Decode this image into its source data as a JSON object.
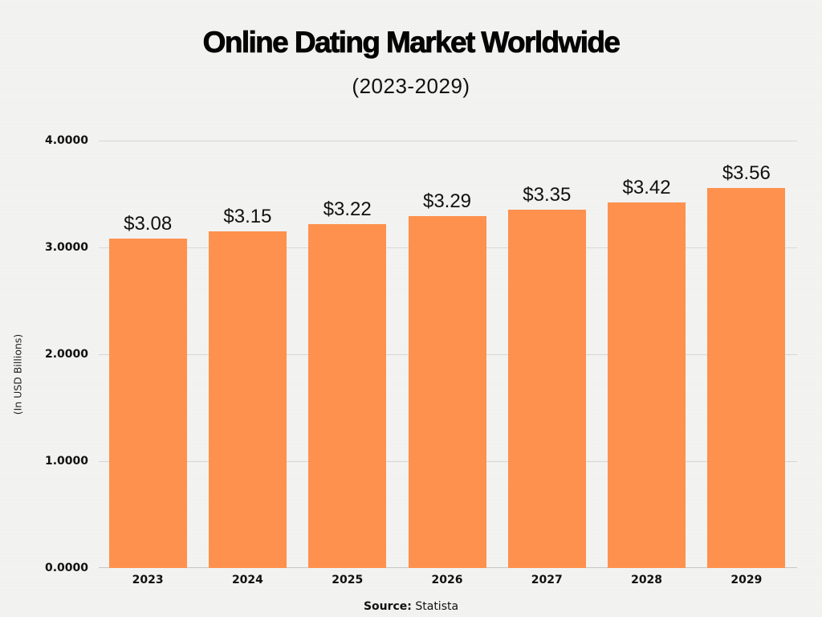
{
  "header": {
    "title": "Online Dating Market Worldwide",
    "subtitle": "(2023-2029)"
  },
  "footer": {
    "source_label": "Source:",
    "source_value": "Statista"
  },
  "colors": {
    "bar": "#fe914d",
    "gridline": "#d6d6d4",
    "background": "#f3f3f2"
  },
  "chart_data": {
    "type": "bar",
    "title": "Online Dating Market Worldwide",
    "subtitle": "(2023-2029)",
    "xlabel": "",
    "ylabel": "(In USD Billions)",
    "categories": [
      "2023",
      "2024",
      "2025",
      "2026",
      "2027",
      "2028",
      "2029"
    ],
    "values": [
      3.08,
      3.15,
      3.22,
      3.29,
      3.35,
      3.42,
      3.56
    ],
    "value_labels": [
      "$3.08",
      "$3.15",
      "$3.22",
      "$3.29",
      "$3.35",
      "$3.42",
      "$3.56"
    ],
    "yticks": [
      "0.0000",
      "1.0000",
      "2.0000",
      "3.0000",
      "4.0000"
    ],
    "ylim": [
      0,
      4
    ],
    "grid": true,
    "legend": null,
    "source": "Source: Statista"
  }
}
